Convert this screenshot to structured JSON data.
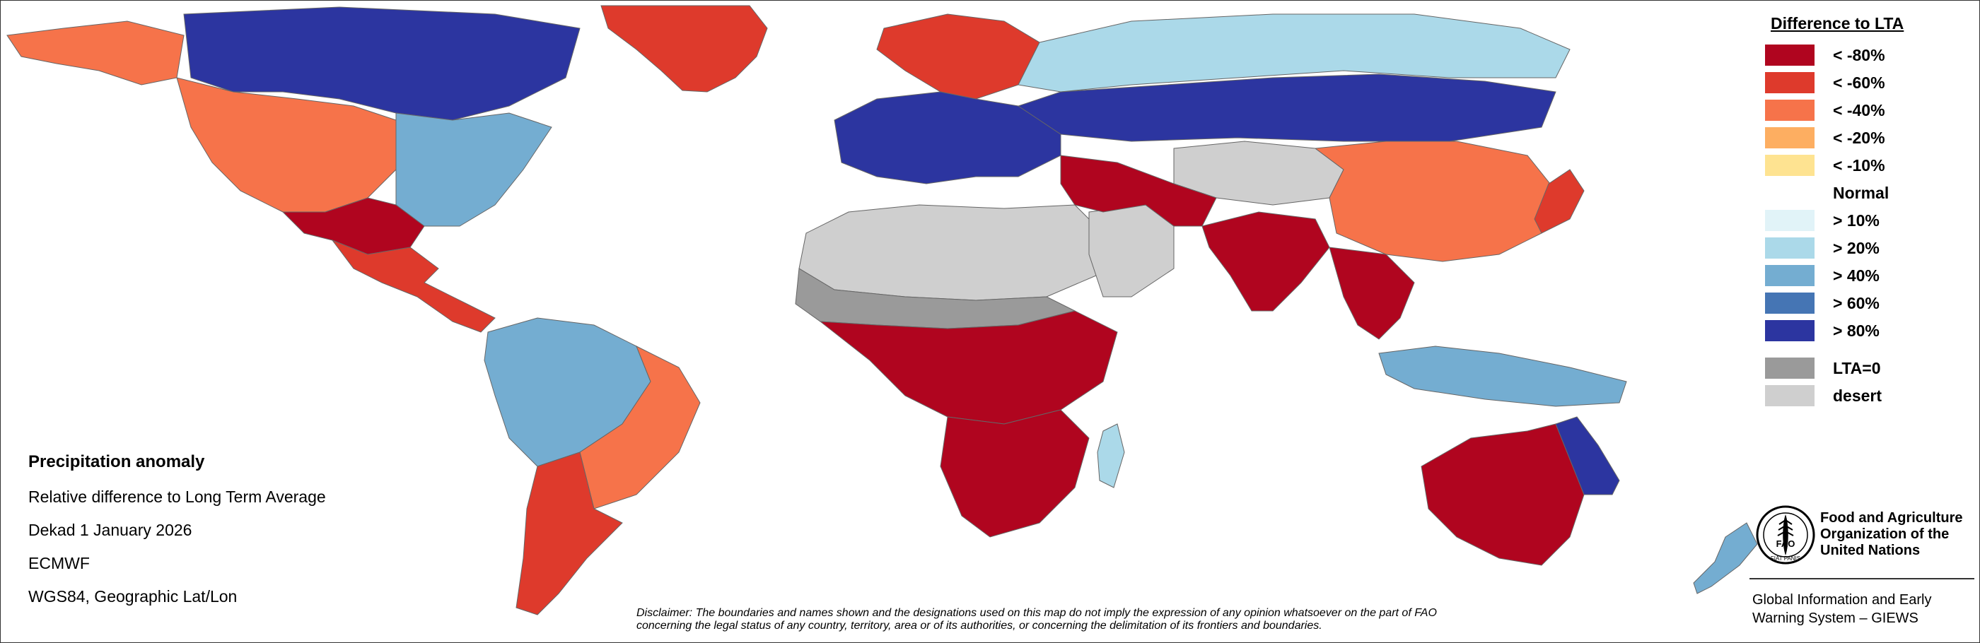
{
  "legend": {
    "title": "Difference to LTA",
    "classes": [
      {
        "label": "< -80%",
        "color": "#b0051f"
      },
      {
        "label": "< -60%",
        "color": "#de3a2c"
      },
      {
        "label": "< -40%",
        "color": "#f6734a"
      },
      {
        "label": "< -20%",
        "color": "#fdae61"
      },
      {
        "label": "< -10%",
        "color": "#fee391"
      },
      {
        "label": "Normal",
        "color": "#ffffff"
      },
      {
        "label": "> 10%",
        "color": "#e1f3f8"
      },
      {
        "label": "> 20%",
        "color": "#abd9e9"
      },
      {
        "label": "> 40%",
        "color": "#74add1"
      },
      {
        "label": "> 60%",
        "color": "#4575b4"
      },
      {
        "label": "> 80%",
        "color": "#2c35a0"
      }
    ],
    "extra": [
      {
        "label": "LTA=0",
        "color": "#9a9a9a"
      },
      {
        "label": "desert",
        "color": "#cfcfcf"
      }
    ]
  },
  "info": {
    "title": "Precipitation anomaly",
    "subtitle": "Relative difference to Long Term Average",
    "period": "Dekad 1 January 2026",
    "source": "ECMWF",
    "projection": "WGS84, Geographic Lat/Lon"
  },
  "disclaimer": {
    "line1": "Disclaimer: The boundaries and names shown and the designations used on this map do not imply the expression of any opinion whatsoever on the part of FAO",
    "line2": "concerning the legal status of any country, territory, area or of its authorities, or concerning the delimitation of its frontiers and boundaries."
  },
  "organization": {
    "logo_letters": "FAO",
    "logo_motto": "FIAT PANIS",
    "name": "Food and Agriculture Organization of the United Nations",
    "system": "Global Information and Early Warning System – GIEWS"
  },
  "map": {
    "regions": [
      {
        "name": "greenland",
        "class": 1
      },
      {
        "name": "north-america-north",
        "class": 10
      },
      {
        "name": "alaska",
        "class": 2
      },
      {
        "name": "north-america-central",
        "class": 2
      },
      {
        "name": "north-america-east",
        "class": 8
      },
      {
        "name": "north-america-southwest",
        "class": 0
      },
      {
        "name": "mexico-central-america",
        "class": 1
      },
      {
        "name": "south-america-north",
        "class": 8
      },
      {
        "name": "south-america-east",
        "class": 2
      },
      {
        "name": "south-america-south",
        "class": 1
      },
      {
        "name": "europe-north",
        "class": 1
      },
      {
        "name": "europe-central",
        "class": 10
      },
      {
        "name": "russia-north",
        "class": 7
      },
      {
        "name": "russia-central",
        "class": 10
      },
      {
        "name": "sahara",
        "class": 12
      },
      {
        "name": "sahel",
        "class": 11
      },
      {
        "name": "arabian-peninsula",
        "class": 12
      },
      {
        "name": "central-asia-desert",
        "class": 12
      },
      {
        "name": "middle-east",
        "class": 0
      },
      {
        "name": "africa-central",
        "class": 0
      },
      {
        "name": "africa-south",
        "class": 0
      },
      {
        "name": "madagascar",
        "class": 7
      },
      {
        "name": "india",
        "class": 0
      },
      {
        "name": "china",
        "class": 2
      },
      {
        "name": "southeast-asia",
        "class": 0
      },
      {
        "name": "japan",
        "class": 1
      },
      {
        "name": "indonesia",
        "class": 8
      },
      {
        "name": "australia",
        "class": 0
      },
      {
        "name": "australia-northeast",
        "class": 10
      },
      {
        "name": "new-zealand",
        "class": 8
      }
    ]
  }
}
